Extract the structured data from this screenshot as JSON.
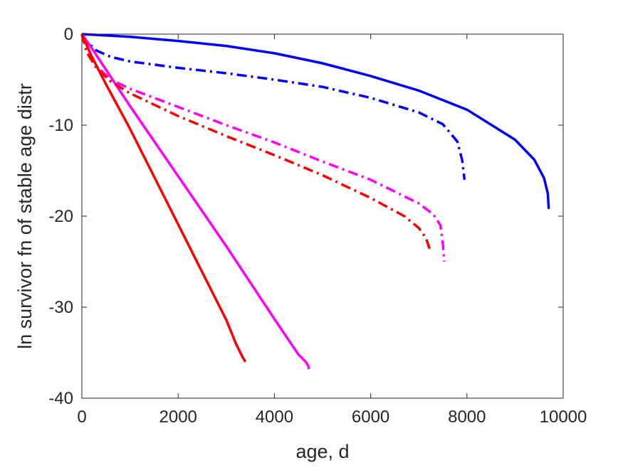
{
  "chart_data": {
    "type": "line",
    "title": "",
    "xlabel": "age, d",
    "ylabel": "ln survivor fn of stable age distr",
    "xlim": [
      0,
      10000
    ],
    "ylim": [
      -40,
      0
    ],
    "xticks": [
      0,
      2000,
      4000,
      6000,
      8000,
      10000
    ],
    "yticks": [
      0,
      -10,
      -20,
      -30,
      -40
    ],
    "xtick_labels": [
      "0",
      "2000",
      "4000",
      "6000",
      "8000",
      "10000"
    ],
    "ytick_labels": [
      "0",
      "-10",
      "-20",
      "-30",
      "-40"
    ],
    "grid": false,
    "legend": "none",
    "series": [
      {
        "color": "#0000ff",
        "style": "solid",
        "x": [
          0,
          1000,
          2000,
          3000,
          4000,
          5000,
          6000,
          7000,
          8000,
          9000,
          9400,
          9600,
          9680,
          9700
        ],
        "y": [
          0,
          -0.3,
          -0.75,
          -1.3,
          -2.1,
          -3.2,
          -4.6,
          -6.2,
          -8.3,
          -11.6,
          -13.8,
          -15.8,
          -17.5,
          -19.2
        ]
      },
      {
        "color": "#0000ff",
        "style": "dashdot",
        "x": [
          0,
          100,
          300,
          600,
          1000,
          2000,
          3000,
          4000,
          5000,
          6000,
          7000,
          7500,
          7800,
          7900,
          7950
        ],
        "y": [
          0,
          -0.8,
          -1.8,
          -2.5,
          -3.0,
          -3.7,
          -4.3,
          -5.0,
          -5.8,
          -7.0,
          -8.6,
          -9.9,
          -11.8,
          -13.8,
          -16.0
        ]
      },
      {
        "color": "#ff00ff",
        "style": "solid",
        "x": [
          0,
          200,
          500,
          1000,
          2000,
          3000,
          4000,
          4500,
          4650,
          4700,
          4720
        ],
        "y": [
          0,
          -1.5,
          -3.9,
          -7.9,
          -15.6,
          -23.3,
          -31.3,
          -35.2,
          -36.0,
          -36.4,
          -36.8
        ]
      },
      {
        "color": "#ff00ff",
        "style": "dashdot",
        "x": [
          0,
          100,
          300,
          600,
          1000,
          2000,
          3000,
          4000,
          5000,
          6000,
          7000,
          7300,
          7450,
          7500,
          7530
        ],
        "y": [
          0,
          -1.6,
          -3.5,
          -5.0,
          -6.0,
          -8.0,
          -10.0,
          -11.9,
          -14.0,
          -16.0,
          -18.6,
          -19.8,
          -21.0,
          -23.0,
          -25.0
        ]
      },
      {
        "color": "#ff0000",
        "style": "solid",
        "x": [
          0,
          200,
          500,
          1000,
          2000,
          3000,
          3200,
          3350,
          3400
        ],
        "y": [
          0,
          -2.4,
          -5.5,
          -10.4,
          -20.9,
          -31.4,
          -34.0,
          -35.6,
          -36.0
        ]
      },
      {
        "color": "#ff0000",
        "style": "dashdot",
        "x": [
          0,
          100,
          300,
          600,
          1000,
          2000,
          3000,
          4000,
          5000,
          6000,
          6700,
          7000,
          7150,
          7250
        ],
        "y": [
          0,
          -2.0,
          -3.7,
          -5.2,
          -6.5,
          -9.0,
          -11.2,
          -13.3,
          -15.5,
          -18.0,
          -20.0,
          -21.3,
          -22.4,
          -24.0
        ]
      }
    ]
  }
}
